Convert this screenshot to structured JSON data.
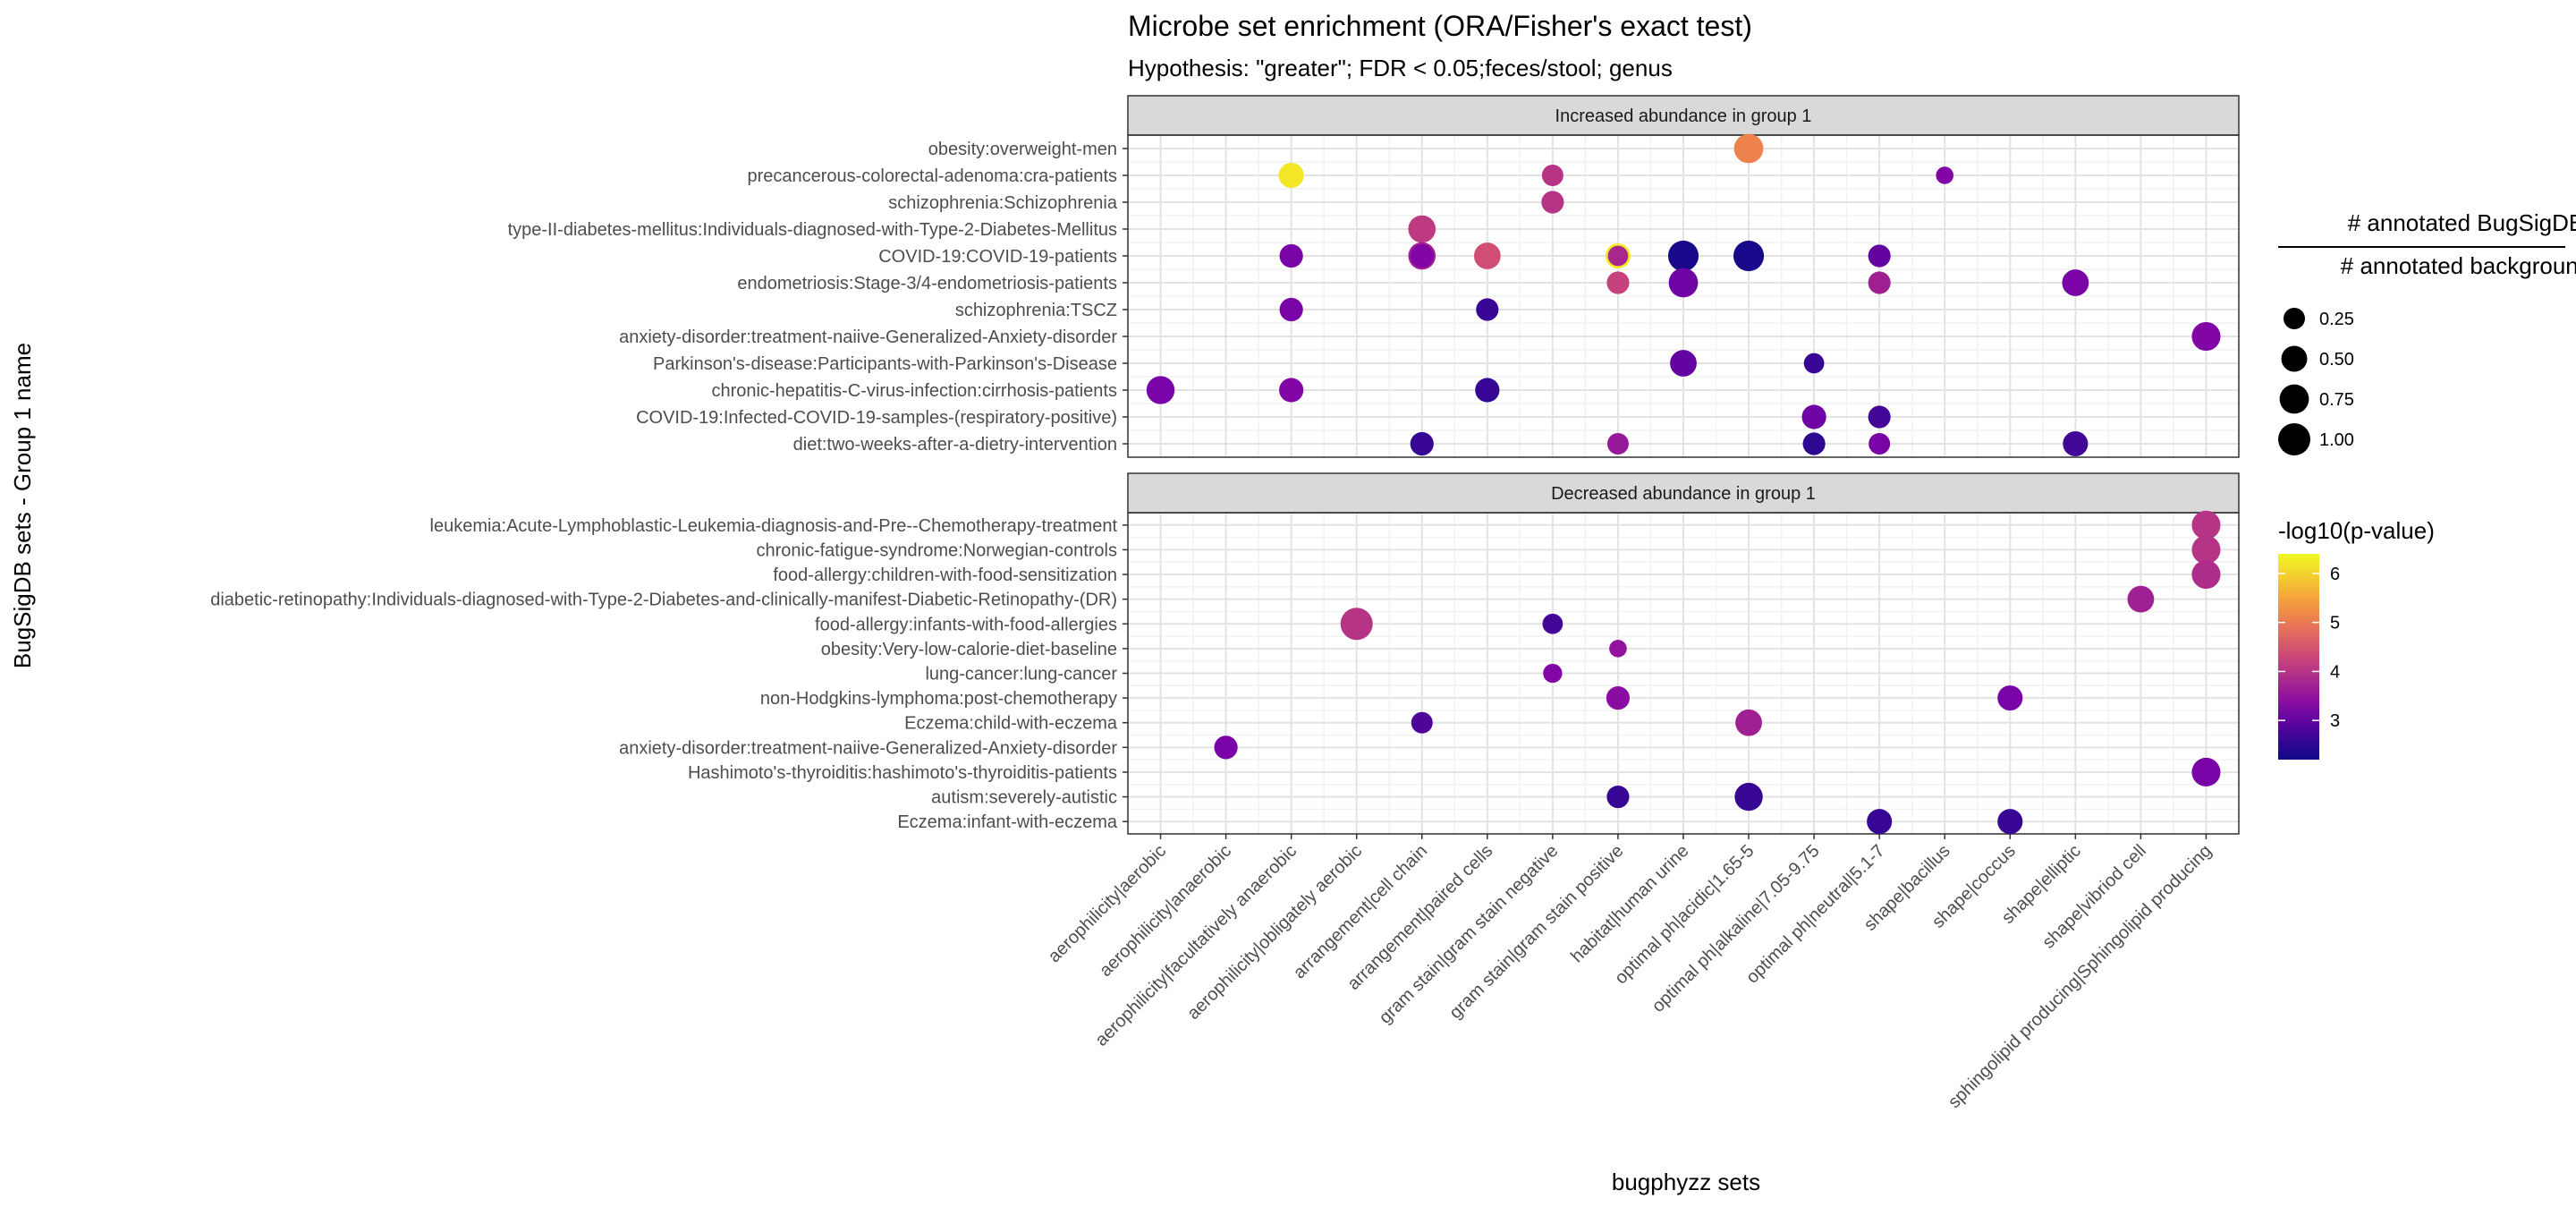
{
  "chart_data": {
    "type": "scatter",
    "title": "Microbe set enrichment (ORA/Fisher's exact test)",
    "subtitle": "Hypothesis: \"greater\"; FDR < 0.05;feces/stool; genus",
    "xlabel": "bugphyzz sets",
    "ylabel": "BugSigDB sets - Group 1 name",
    "grid": true,
    "legend_position": "right",
    "x_categories": [
      "aerophilicity|aerobic",
      "aerophilicity|anaerobic",
      "aerophilicity|facultatively anaerobic",
      "aerophilicity|obligately aerobic",
      "arrangement|cell chain",
      "arrangement|paired cells",
      "gram stain|gram stain negative",
      "gram stain|gram stain positive",
      "habitat|human urine",
      "optimal ph|acidic|1.65-5",
      "optimal ph|alkaline|7.05-9.75",
      "optimal ph|neutral|5.1-7",
      "shape|bacillus",
      "shape|coccus",
      "shape|elliptic",
      "shape|vibriod cell",
      "sphingolipid producing|Sphingolipid producing"
    ],
    "size_legend": {
      "title_top": "# annotated BugSigDB",
      "title_bottom": "# annotated background",
      "values": [
        0.25,
        0.5,
        0.75,
        1.0
      ],
      "labels": [
        "0.25",
        "0.50",
        "0.75",
        "1.00"
      ]
    },
    "color_legend": {
      "title": "-log10(p-value)",
      "range": [
        2.2,
        6.4
      ],
      "ticks": [
        3,
        4,
        5,
        6
      ],
      "tick_labels": [
        "3",
        "4",
        "5",
        "6"
      ]
    },
    "panels": [
      {
        "name": "Increased abundance in group 1",
        "y_categories": [
          "obesity:overweight-men",
          "precancerous-colorectal-adenoma:cra-patients",
          "schizophrenia:Schizophrenia",
          "type-II-diabetes-mellitus:Individuals-diagnosed-with-Type-2-Diabetes-Mellitus",
          "COVID-19:COVID-19-patients",
          "endometriosis:Stage-3/4-endometriosis-patients",
          "schizophrenia:TSCZ",
          "anxiety-disorder:treatment-naiive-Generalized-Anxiety-disorder",
          "Parkinson's-disease:Participants-with-Parkinson's-Disease",
          "chronic-hepatitis-C-virus-infection:cirrhosis-patients",
          "COVID-19:Infected-COVID-19-samples-(respiratory-positive)",
          "diet:two-weeks-after-a-dietry-intervention"
        ],
        "points": [
          {
            "x": "optimal ph|acidic|1.65-5",
            "y": "obesity:overweight-men",
            "size": 0.75,
            "neglog10p": 5.1
          },
          {
            "x": "aerophilicity|facultatively anaerobic",
            "y": "precancerous-colorectal-adenoma:cra-patients",
            "size": 0.45,
            "neglog10p": 6.2
          },
          {
            "x": "gram stain|gram stain negative",
            "y": "precancerous-colorectal-adenoma:cra-patients",
            "size": 0.25,
            "neglog10p": 4.0
          },
          {
            "x": "shape|bacillus",
            "y": "precancerous-colorectal-adenoma:cra-patients",
            "size": 0.1,
            "neglog10p": 3.3
          },
          {
            "x": "gram stain|gram stain negative",
            "y": "schizophrenia:Schizophrenia",
            "size": 0.3,
            "neglog10p": 4.0
          },
          {
            "x": "arrangement|cell chain",
            "y": "type-II-diabetes-mellitus:Individuals-diagnosed-with-Type-2-Diabetes-Mellitus",
            "size": 0.6,
            "neglog10p": 4.1
          },
          {
            "x": "aerophilicity|facultatively anaerobic",
            "y": "COVID-19:COVID-19-patients",
            "size": 0.35,
            "neglog10p": 3.2
          },
          {
            "x": "arrangement|cell chain",
            "y": "COVID-19:COVID-19-patients",
            "size": 0.6,
            "neglog10p": 3.7
          },
          {
            "x": "arrangement|cell chain",
            "y": "COVID-19:COVID-19-patients",
            "size": 0.35,
            "neglog10p": 3.3
          },
          {
            "x": "arrangement|paired cells",
            "y": "COVID-19:COVID-19-patients",
            "size": 0.55,
            "neglog10p": 4.4
          },
          {
            "x": "gram stain|gram stain positive",
            "y": "COVID-19:COVID-19-patients",
            "size": 0.45,
            "neglog10p": 6.3
          },
          {
            "x": "gram stain|gram stain positive",
            "y": "COVID-19:COVID-19-patients",
            "size": 0.2,
            "neglog10p": 3.8
          },
          {
            "x": "habitat|human urine",
            "y": "COVID-19:COVID-19-patients",
            "size": 0.85,
            "neglog10p": 2.3
          },
          {
            "x": "optimal ph|acidic|1.65-5",
            "y": "COVID-19:COVID-19-patients",
            "size": 0.85,
            "neglog10p": 2.3
          },
          {
            "x": "optimal ph|neutral|5.1-7",
            "y": "COVID-19:COVID-19-patients",
            "size": 0.3,
            "neglog10p": 3.0
          },
          {
            "x": "gram stain|gram stain positive",
            "y": "endometriosis:Stage-3/4-endometriosis-patients",
            "size": 0.3,
            "neglog10p": 4.2
          },
          {
            "x": "habitat|human urine",
            "y": "endometriosis:Stage-3/4-endometriosis-patients",
            "size": 0.75,
            "neglog10p": 3.1
          },
          {
            "x": "optimal ph|neutral|5.1-7",
            "y": "endometriosis:Stage-3/4-endometriosis-patients",
            "size": 0.3,
            "neglog10p": 3.7
          },
          {
            "x": "shape|elliptic",
            "y": "endometriosis:Stage-3/4-endometriosis-patients",
            "size": 0.55,
            "neglog10p": 3.2
          },
          {
            "x": "aerophilicity|facultatively anaerobic",
            "y": "schizophrenia:TSCZ",
            "size": 0.35,
            "neglog10p": 3.2
          },
          {
            "x": "arrangement|paired cells",
            "y": "schizophrenia:TSCZ",
            "size": 0.3,
            "neglog10p": 2.6
          },
          {
            "x": "sphingolipid producing|Sphingolipid producing",
            "y": "anxiety-disorder:treatment-naiive-Generalized-Anxiety-disorder",
            "size": 0.7,
            "neglog10p": 3.3
          },
          {
            "x": "habitat|human urine",
            "y": "Parkinson's-disease:Participants-with-Parkinson's-Disease",
            "size": 0.55,
            "neglog10p": 3.0
          },
          {
            "x": "optimal ph|alkaline|7.05-9.75",
            "y": "Parkinson's-disease:Participants-with-Parkinson's-Disease",
            "size": 0.2,
            "neglog10p": 2.6
          },
          {
            "x": "aerophilicity|aerobic",
            "y": "chronic-hepatitis-C-virus-infection:cirrhosis-patients",
            "size": 0.65,
            "neglog10p": 3.2
          },
          {
            "x": "aerophilicity|facultatively anaerobic",
            "y": "chronic-hepatitis-C-virus-infection:cirrhosis-patients",
            "size": 0.4,
            "neglog10p": 3.3
          },
          {
            "x": "arrangement|paired cells",
            "y": "chronic-hepatitis-C-virus-infection:cirrhosis-patients",
            "size": 0.4,
            "neglog10p": 2.6
          },
          {
            "x": "optimal ph|alkaline|7.05-9.75",
            "y": "COVID-19:Infected-COVID-19-samples-(respiratory-positive)",
            "size": 0.4,
            "neglog10p": 3.1
          },
          {
            "x": "optimal ph|neutral|5.1-7",
            "y": "COVID-19:Infected-COVID-19-samples-(respiratory-positive)",
            "size": 0.3,
            "neglog10p": 2.7
          },
          {
            "x": "arrangement|cell chain",
            "y": "diet:two-weeks-after-a-dietry-intervention",
            "size": 0.35,
            "neglog10p": 2.6
          },
          {
            "x": "gram stain|gram stain positive",
            "y": "diet:two-weeks-after-a-dietry-intervention",
            "size": 0.25,
            "neglog10p": 3.6
          },
          {
            "x": "optimal ph|alkaline|7.05-9.75",
            "y": "diet:two-weeks-after-a-dietry-intervention",
            "size": 0.3,
            "neglog10p": 2.5
          },
          {
            "x": "optimal ph|neutral|5.1-7",
            "y": "diet:two-weeks-after-a-dietry-intervention",
            "size": 0.25,
            "neglog10p": 3.2
          },
          {
            "x": "shape|elliptic",
            "y": "diet:two-weeks-after-a-dietry-intervention",
            "size": 0.45,
            "neglog10p": 2.7
          }
        ]
      },
      {
        "name": "Decreased abundance in group 1",
        "y_categories": [
          "leukemia:Acute-Lymphoblastic-Leukemia-diagnosis-and-Pre--Chemotherapy-treatment",
          "chronic-fatigue-syndrome:Norwegian-controls",
          "food-allergy:children-with-food-sensitization",
          "diabetic-retinopathy:Individuals-diagnosed-with-Type-2-Diabetes-and-clinically-manifest-Diabetic-Retinopathy-(DR)",
          "food-allergy:infants-with-food-allergies",
          "obesity:Very-low-calorie-diet-baseline",
          "lung-cancer:lung-cancer",
          "non-Hodgkins-lymphoma:post-chemotherapy",
          "Eczema:child-with-eczema",
          "anxiety-disorder:treatment-naiive-Generalized-Anxiety-disorder",
          "Hashimoto's-thyroiditis:hashimoto's-thyroiditis-patients",
          "autism:severely-autistic",
          "Eczema:infant-with-eczema"
        ],
        "points": [
          {
            "x": "sphingolipid producing|Sphingolipid producing",
            "y": "leukemia:Acute-Lymphoblastic-Leukemia-diagnosis-and-Pre--Chemotherapy-treatment",
            "size": 0.7,
            "neglog10p": 4.0
          },
          {
            "x": "sphingolipid producing|Sphingolipid producing",
            "y": "chronic-fatigue-syndrome:Norwegian-controls",
            "size": 0.7,
            "neglog10p": 4.0
          },
          {
            "x": "sphingolipid producing|Sphingolipid producing",
            "y": "food-allergy:children-with-food-sensitization",
            "size": 0.7,
            "neglog10p": 3.9
          },
          {
            "x": "shape|vibriod cell",
            "y": "diabetic-retinopathy:Individuals-diagnosed-with-Type-2-Diabetes-and-clinically-manifest-Diabetic-Retinopathy-(DR)",
            "size": 0.55,
            "neglog10p": 3.7
          },
          {
            "x": "aerophilicity|obligately aerobic",
            "y": "food-allergy:infants-with-food-allergies",
            "size": 1.0,
            "neglog10p": 4.0
          },
          {
            "x": "gram stain|gram stain negative",
            "y": "food-allergy:infants-with-food-allergies",
            "size": 0.2,
            "neglog10p": 2.7
          },
          {
            "x": "gram stain|gram stain positive",
            "y": "obesity:Very-low-calorie-diet-baseline",
            "size": 0.1,
            "neglog10p": 3.5
          },
          {
            "x": "gram stain|gram stain negative",
            "y": "lung-cancer:lung-cancer",
            "size": 0.15,
            "neglog10p": 3.3
          },
          {
            "x": "gram stain|gram stain positive",
            "y": "non-Hodgkins-lymphoma:post-chemotherapy",
            "size": 0.35,
            "neglog10p": 3.4
          },
          {
            "x": "shape|coccus",
            "y": "non-Hodgkins-lymphoma:post-chemotherapy",
            "size": 0.45,
            "neglog10p": 3.2
          },
          {
            "x": "arrangement|cell chain",
            "y": "Eczema:child-with-eczema",
            "size": 0.25,
            "neglog10p": 2.8
          },
          {
            "x": "optimal ph|acidic|1.65-5",
            "y": "Eczema:child-with-eczema",
            "size": 0.55,
            "neglog10p": 3.7
          },
          {
            "x": "aerophilicity|anaerobic",
            "y": "anxiety-disorder:treatment-naiive-Generalized-Anxiety-disorder",
            "size": 0.35,
            "neglog10p": 3.2
          },
          {
            "x": "sphingolipid producing|Sphingolipid producing",
            "y": "Hashimoto's-thyroiditis:hashimoto's-thyroiditis-patients",
            "size": 0.7,
            "neglog10p": 3.2
          },
          {
            "x": "gram stain|gram stain positive",
            "y": "autism:severely-autistic",
            "size": 0.3,
            "neglog10p": 2.6
          },
          {
            "x": "optimal ph|acidic|1.65-5",
            "y": "autism:severely-autistic",
            "size": 0.65,
            "neglog10p": 2.6
          },
          {
            "x": "optimal ph|neutral|5.1-7",
            "y": "Eczema:infant-with-eczema",
            "size": 0.45,
            "neglog10p": 2.6
          },
          {
            "x": "shape|coccus",
            "y": "Eczema:infant-with-eczema",
            "size": 0.45,
            "neglog10p": 2.6
          }
        ]
      }
    ]
  }
}
